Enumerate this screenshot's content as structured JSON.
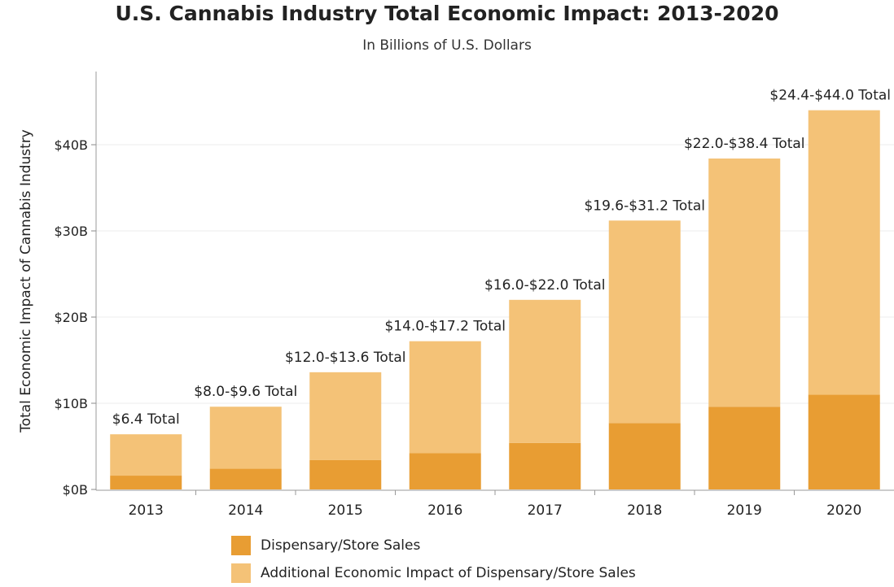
{
  "chart_data": {
    "type": "bar",
    "stacked": true,
    "title": "U.S. Cannabis Industry Total Economic Impact: 2013-2020",
    "subtitle": "In Billions of U.S. Dollars",
    "xlabel": "",
    "ylabel": "Total Economic Impact of Cannabis Industry",
    "categories": [
      "2013",
      "2014",
      "2015",
      "2016",
      "2017",
      "2018",
      "2019",
      "2020"
    ],
    "series": [
      {
        "name": "Dispensary/Store Sales",
        "color": "#E89D33",
        "values": [
          1.6,
          2.4,
          3.4,
          4.2,
          5.4,
          7.7,
          9.6,
          11.0
        ]
      },
      {
        "name": "Additional Economic Impact of Dispensary/Store Sales",
        "color": "#F4C277",
        "values": [
          4.8,
          7.2,
          10.2,
          13.0,
          16.6,
          23.5,
          28.8,
          33.0
        ]
      }
    ],
    "totals": [
      6.4,
      9.6,
      13.6,
      17.2,
      22.0,
      31.2,
      38.4,
      44.0
    ],
    "bar_labels": [
      "$6.4 Total",
      "$8.0-$9.6 Total",
      "$12.0-$13.6 Total",
      "$14.0-$17.2 Total",
      "$16.0-$22.0 Total",
      "$19.6-$31.2 Total",
      "$22.0-$38.4 Total",
      "$24.4-$44.0 Total"
    ],
    "yticks": [
      0,
      10,
      20,
      30,
      40
    ],
    "ytick_labels": [
      "$0B",
      "$10B",
      "$20B",
      "$30B",
      "$40B"
    ],
    "ylim": [
      0,
      48
    ],
    "grid": true,
    "legend_position": "bottom-center"
  }
}
